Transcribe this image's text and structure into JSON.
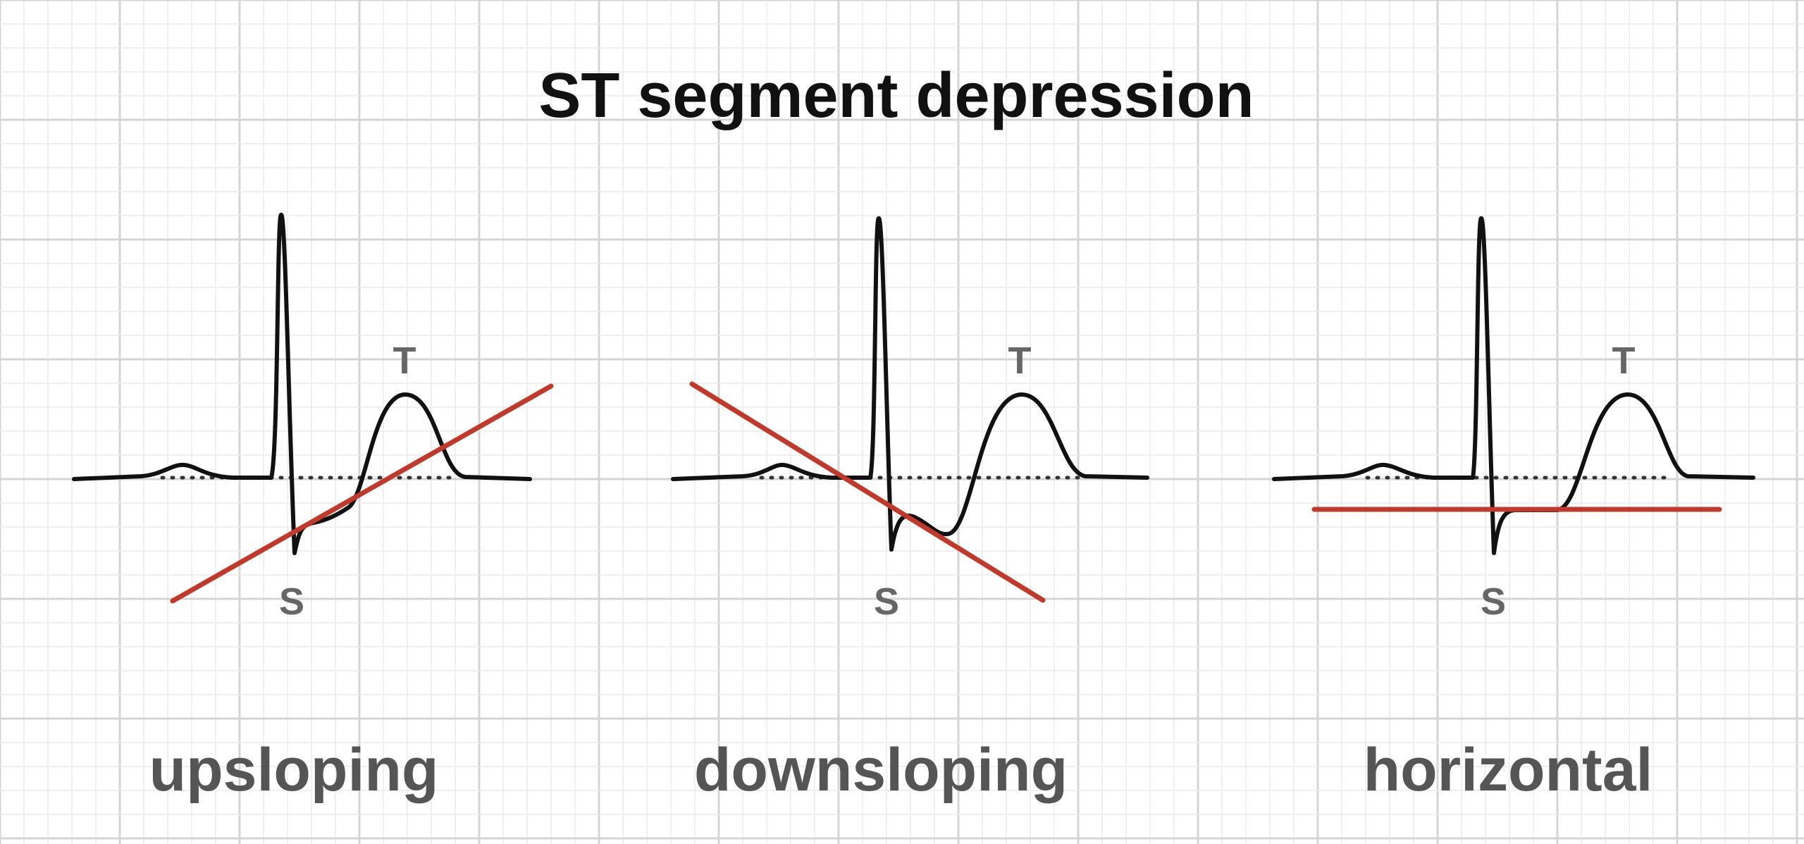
{
  "title": "ST segment depression",
  "panels": [
    {
      "id": "upsloping",
      "label": "upsloping",
      "t_label": "T",
      "s_label": "S"
    },
    {
      "id": "downsloping",
      "label": "downsloping",
      "t_label": "T",
      "s_label": "S"
    },
    {
      "id": "horizontal",
      "label": "horizontal",
      "t_label": "T",
      "s_label": "S"
    }
  ],
  "colors": {
    "trace": "#111111",
    "st_line": "#c0392b",
    "baseline": "#333333",
    "grid_minor": "#ececec",
    "grid_major": "#d4d4d4",
    "label": "#555555"
  }
}
